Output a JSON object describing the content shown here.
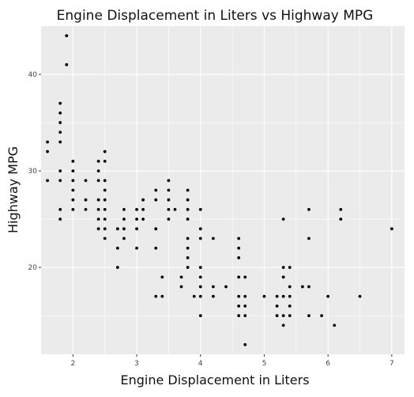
{
  "chart_data": {
    "type": "scatter",
    "title": "Engine Displacement in Liters vs Highway MPG",
    "xlabel": "Engine Displacement in Liters",
    "ylabel": "Highway MPG",
    "xlim": [
      1.5,
      7.2
    ],
    "ylim": [
      11,
      45
    ],
    "xticks": [
      2,
      3,
      4,
      5,
      6,
      7
    ],
    "yticks": [
      20,
      30,
      40
    ],
    "grid": true,
    "colors": {
      "panel": "#ebebeb",
      "grid_major": "#ffffff",
      "point": "#000000"
    },
    "points": [
      [
        1.6,
        33
      ],
      [
        1.6,
        32
      ],
      [
        1.6,
        29
      ],
      [
        1.8,
        37
      ],
      [
        1.8,
        36
      ],
      [
        1.8,
        35
      ],
      [
        1.8,
        34
      ],
      [
        1.8,
        33
      ],
      [
        1.8,
        30
      ],
      [
        1.8,
        29
      ],
      [
        1.8,
        26
      ],
      [
        1.8,
        25
      ],
      [
        1.9,
        44
      ],
      [
        1.9,
        41
      ],
      [
        2.0,
        31
      ],
      [
        2.0,
        30
      ],
      [
        2.0,
        29
      ],
      [
        2.0,
        28
      ],
      [
        2.0,
        27
      ],
      [
        2.0,
        26
      ],
      [
        2.2,
        29
      ],
      [
        2.2,
        27
      ],
      [
        2.2,
        26
      ],
      [
        2.4,
        31
      ],
      [
        2.4,
        30
      ],
      [
        2.4,
        29
      ],
      [
        2.4,
        27
      ],
      [
        2.4,
        26
      ],
      [
        2.4,
        25
      ],
      [
        2.4,
        24
      ],
      [
        2.5,
        32
      ],
      [
        2.5,
        31
      ],
      [
        2.5,
        29
      ],
      [
        2.5,
        28
      ],
      [
        2.5,
        27
      ],
      [
        2.5,
        26
      ],
      [
        2.5,
        25
      ],
      [
        2.5,
        24
      ],
      [
        2.5,
        23
      ],
      [
        2.7,
        22
      ],
      [
        2.7,
        20
      ],
      [
        2.7,
        24
      ],
      [
        2.8,
        26
      ],
      [
        2.8,
        25
      ],
      [
        2.8,
        24
      ],
      [
        2.8,
        23
      ],
      [
        3.0,
        26
      ],
      [
        3.0,
        25
      ],
      [
        3.0,
        24
      ],
      [
        3.0,
        22
      ],
      [
        3.1,
        27
      ],
      [
        3.1,
        26
      ],
      [
        3.1,
        25
      ],
      [
        3.3,
        28
      ],
      [
        3.3,
        27
      ],
      [
        3.3,
        24
      ],
      [
        3.3,
        22
      ],
      [
        3.3,
        17
      ],
      [
        3.4,
        19
      ],
      [
        3.4,
        17
      ],
      [
        3.5,
        29
      ],
      [
        3.5,
        28
      ],
      [
        3.5,
        27
      ],
      [
        3.5,
        26
      ],
      [
        3.5,
        25
      ],
      [
        3.6,
        26
      ],
      [
        3.7,
        19
      ],
      [
        3.7,
        18
      ],
      [
        3.8,
        28
      ],
      [
        3.8,
        27
      ],
      [
        3.8,
        26
      ],
      [
        3.8,
        25
      ],
      [
        3.8,
        23
      ],
      [
        3.8,
        22
      ],
      [
        3.8,
        21
      ],
      [
        3.8,
        20
      ],
      [
        3.9,
        17
      ],
      [
        4.0,
        26
      ],
      [
        4.0,
        24
      ],
      [
        4.0,
        23
      ],
      [
        4.0,
        20
      ],
      [
        4.0,
        19
      ],
      [
        4.0,
        18
      ],
      [
        4.0,
        17
      ],
      [
        4.0,
        15
      ],
      [
        4.2,
        23
      ],
      [
        4.2,
        18
      ],
      [
        4.2,
        17
      ],
      [
        4.4,
        18
      ],
      [
        4.6,
        23
      ],
      [
        4.6,
        22
      ],
      [
        4.6,
        21
      ],
      [
        4.6,
        19
      ],
      [
        4.6,
        17
      ],
      [
        4.6,
        16
      ],
      [
        4.6,
        15
      ],
      [
        4.7,
        19
      ],
      [
        4.7,
        17
      ],
      [
        4.7,
        16
      ],
      [
        4.7,
        15
      ],
      [
        4.7,
        12
      ],
      [
        5.0,
        17
      ],
      [
        5.2,
        17
      ],
      [
        5.2,
        16
      ],
      [
        5.2,
        15
      ],
      [
        5.3,
        25
      ],
      [
        5.3,
        20
      ],
      [
        5.3,
        19
      ],
      [
        5.3,
        17
      ],
      [
        5.3,
        15
      ],
      [
        5.3,
        14
      ],
      [
        5.4,
        20
      ],
      [
        5.4,
        18
      ],
      [
        5.4,
        17
      ],
      [
        5.4,
        16
      ],
      [
        5.4,
        15
      ],
      [
        5.6,
        18
      ],
      [
        5.7,
        26
      ],
      [
        5.7,
        23
      ],
      [
        5.7,
        18
      ],
      [
        5.7,
        15
      ],
      [
        5.9,
        15
      ],
      [
        6.0,
        17
      ],
      [
        6.1,
        14
      ],
      [
        6.2,
        26
      ],
      [
        6.2,
        25
      ],
      [
        6.5,
        17
      ],
      [
        7.0,
        24
      ]
    ]
  }
}
